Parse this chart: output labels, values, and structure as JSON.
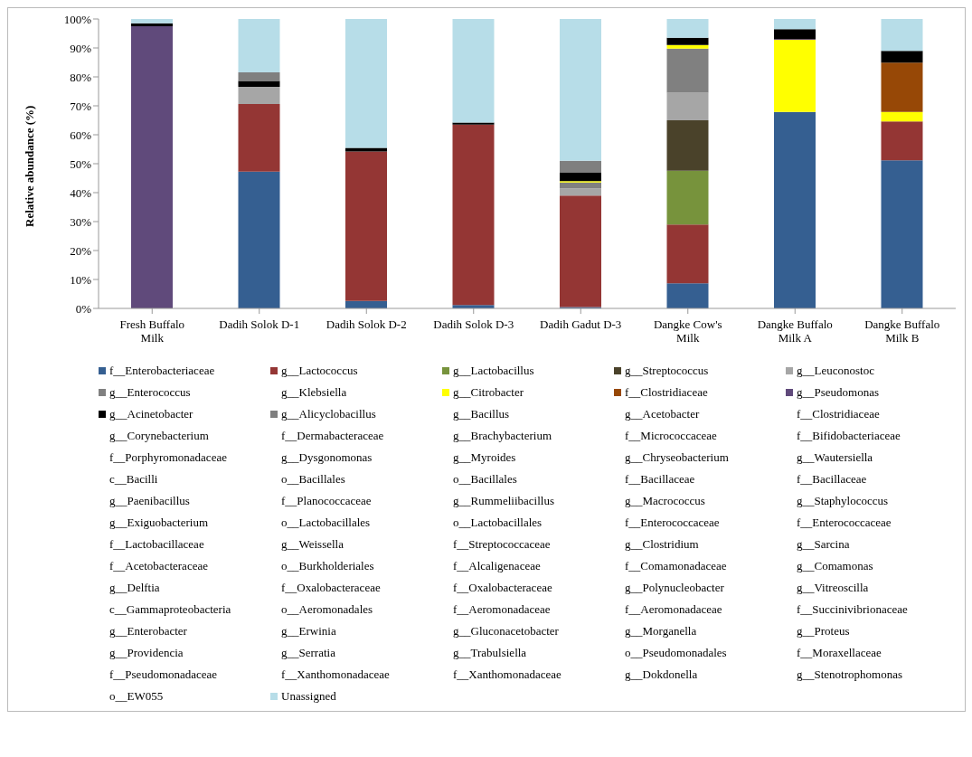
{
  "chart_data": {
    "type": "bar",
    "stacked": true,
    "ylabel": "Relative abundance (%)",
    "categories": [
      "Fresh Buffalo Milk",
      "Dadih Solok D-1",
      "Dadih Solok D-2",
      "Dadih Solok D-3",
      "Dadih Gadut D-3",
      "Dangke Cow's Milk",
      "Dangke Buffalo Milk A",
      "Dangke Buffalo Milk B"
    ],
    "ylim": [
      0,
      100
    ],
    "yticks": [
      {
        "value": 0,
        "label": "0%"
      },
      {
        "value": 10,
        "label": "10%"
      },
      {
        "value": 20,
        "label": "20%"
      },
      {
        "value": 30,
        "label": "30%"
      },
      {
        "value": 40,
        "label": "40%"
      },
      {
        "value": 50,
        "label": "50%"
      },
      {
        "value": 60,
        "label": "60%"
      },
      {
        "value": 70,
        "label": "70%"
      },
      {
        "value": 80,
        "label": "80%"
      },
      {
        "value": 90,
        "label": "90%"
      },
      {
        "value": 100,
        "label": "100%"
      }
    ],
    "grid": false,
    "legend": "bottom",
    "series": [
      {
        "name": "f__Enterobacteriaceae",
        "color": "#355f91",
        "values": [
          null,
          47.3,
          2.6,
          1.2,
          0.5,
          8.7,
          67.9,
          51.2
        ]
      },
      {
        "name": "g__Lactococcus",
        "color": "#943634",
        "values": [
          null,
          23.3,
          51.6,
          62.3,
          38.5,
          20.3,
          null,
          13.4
        ]
      },
      {
        "name": "g__Lactobacillus",
        "color": "#77933c",
        "values": [
          null,
          null,
          null,
          null,
          null,
          18.6,
          null,
          null
        ]
      },
      {
        "name": "g__Streptococcus",
        "color": "#4a422a",
        "values": [
          null,
          null,
          null,
          null,
          null,
          17.4,
          null,
          null
        ]
      },
      {
        "name": "g__Leuconostoc",
        "color": "#a6a6a6",
        "values": [
          null,
          6,
          null,
          null,
          2.5,
          9.5,
          null,
          null
        ]
      },
      {
        "name": "g__Enterococcus",
        "color": "#808080",
        "values": [
          null,
          null,
          null,
          null,
          2,
          15.3,
          null,
          null
        ]
      },
      {
        "name": "g__Klebsiella",
        "values": [
          null,
          null,
          null,
          null,
          null,
          null,
          null,
          null
        ]
      },
      {
        "name": "g__Citrobacter",
        "color": "#ffff00",
        "values": [
          null,
          null,
          null,
          null,
          0.5,
          1.2,
          24.9,
          3.3
        ]
      },
      {
        "name": "f__Clostridiaceae",
        "color": "#974806",
        "values": [
          null,
          null,
          null,
          null,
          null,
          null,
          null,
          17
        ]
      },
      {
        "name": "g__Pseudomonas",
        "color": "#604a7b",
        "values": [
          97.5,
          null,
          null,
          null,
          null,
          null,
          0.3,
          null
        ]
      },
      {
        "name": "g__Acinetobacter",
        "color": "#000000",
        "values": [
          1,
          2,
          1.3,
          0.7,
          3,
          2.5,
          3.4,
          4.1
        ]
      },
      {
        "name": "g__Alicyclobacillus",
        "color": "#7f7f7f",
        "values": [
          null,
          3,
          null,
          null,
          4,
          null,
          null,
          null
        ]
      },
      {
        "name": "g__Bacillus",
        "values": [
          null,
          null,
          null,
          null,
          null,
          null,
          null,
          null
        ]
      },
      {
        "name": "g__Acetobacter",
        "values": [
          null,
          null,
          null,
          null,
          null,
          null,
          null,
          null
        ]
      },
      {
        "name": "f__Clostridiaceae",
        "values": [
          null,
          null,
          null,
          null,
          null,
          null,
          null,
          null
        ]
      },
      {
        "name": "g__Corynebacterium",
        "values": [
          null,
          null,
          null,
          null,
          null,
          null,
          null,
          null
        ]
      },
      {
        "name": "f__Dermabacteraceae",
        "values": [
          null,
          null,
          null,
          null,
          null,
          null,
          null,
          null
        ]
      },
      {
        "name": "g__Brachybacterium",
        "values": [
          null,
          null,
          null,
          null,
          null,
          null,
          null,
          null
        ]
      },
      {
        "name": "f__Micrococcaceae",
        "values": [
          null,
          null,
          null,
          null,
          null,
          null,
          null,
          null
        ]
      },
      {
        "name": "f__Bifidobacteriaceae",
        "values": [
          null,
          null,
          null,
          null,
          null,
          null,
          null,
          null
        ]
      },
      {
        "name": "f__Porphyromonadaceae",
        "values": [
          null,
          null,
          null,
          null,
          null,
          null,
          null,
          null
        ]
      },
      {
        "name": "g__Dysgonomonas",
        "values": [
          null,
          null,
          null,
          null,
          null,
          null,
          null,
          null
        ]
      },
      {
        "name": "g__Myroides",
        "values": [
          null,
          null,
          null,
          null,
          null,
          null,
          null,
          null
        ]
      },
      {
        "name": "g__Chryseobacterium",
        "values": [
          null,
          null,
          null,
          null,
          null,
          null,
          null,
          null
        ]
      },
      {
        "name": "g__Wautersiella",
        "values": [
          null,
          null,
          null,
          null,
          null,
          null,
          null,
          null
        ]
      },
      {
        "name": "c__Bacilli",
        "values": [
          null,
          null,
          null,
          null,
          null,
          null,
          null,
          null
        ]
      },
      {
        "name": "o__Bacillales",
        "values": [
          null,
          null,
          null,
          null,
          null,
          null,
          null,
          null
        ]
      },
      {
        "name": "o__Bacillales",
        "values": [
          null,
          null,
          null,
          null,
          null,
          null,
          null,
          null
        ]
      },
      {
        "name": "f__Bacillaceae",
        "values": [
          null,
          null,
          null,
          null,
          null,
          null,
          null,
          null
        ]
      },
      {
        "name": "f__Bacillaceae",
        "values": [
          null,
          null,
          null,
          null,
          null,
          null,
          null,
          null
        ]
      },
      {
        "name": "g__Paenibacillus",
        "values": [
          null,
          null,
          null,
          null,
          null,
          null,
          null,
          null
        ]
      },
      {
        "name": "f__Planococcaceae",
        "values": [
          null,
          null,
          null,
          null,
          null,
          null,
          null,
          null
        ]
      },
      {
        "name": "g__Rummeliibacillus",
        "values": [
          null,
          null,
          null,
          null,
          null,
          null,
          null,
          null
        ]
      },
      {
        "name": "g__Macrococcus",
        "values": [
          null,
          null,
          null,
          null,
          null,
          null,
          null,
          null
        ]
      },
      {
        "name": "g__Staphylococcus",
        "values": [
          null,
          null,
          null,
          null,
          null,
          null,
          null,
          null
        ]
      },
      {
        "name": "g__Exiguobacterium",
        "values": [
          null,
          null,
          null,
          null,
          null,
          null,
          null,
          null
        ]
      },
      {
        "name": "o__Lactobacillales",
        "values": [
          null,
          null,
          null,
          null,
          null,
          null,
          null,
          null
        ]
      },
      {
        "name": "o__Lactobacillales",
        "values": [
          null,
          null,
          null,
          null,
          null,
          null,
          null,
          null
        ]
      },
      {
        "name": "f__Enterococcaceae",
        "values": [
          null,
          null,
          null,
          null,
          null,
          null,
          null,
          null
        ]
      },
      {
        "name": "f__Enterococcaceae",
        "values": [
          null,
          null,
          null,
          null,
          null,
          null,
          null,
          null
        ]
      },
      {
        "name": "f__Lactobacillaceae",
        "values": [
          null,
          null,
          null,
          null,
          null,
          null,
          null,
          null
        ]
      },
      {
        "name": "g__Weissella",
        "values": [
          null,
          null,
          null,
          null,
          null,
          null,
          null,
          null
        ]
      },
      {
        "name": "f__Streptococcaceae",
        "values": [
          null,
          null,
          null,
          null,
          null,
          null,
          null,
          null
        ]
      },
      {
        "name": "g__Clostridium",
        "values": [
          null,
          null,
          null,
          null,
          null,
          null,
          null,
          null
        ]
      },
      {
        "name": "g__Sarcina",
        "values": [
          null,
          null,
          null,
          null,
          null,
          null,
          null,
          null
        ]
      },
      {
        "name": "f__Acetobacteraceae",
        "values": [
          null,
          null,
          null,
          null,
          null,
          null,
          null,
          null
        ]
      },
      {
        "name": "o__Burkholderiales",
        "values": [
          null,
          null,
          null,
          null,
          null,
          null,
          null,
          null
        ]
      },
      {
        "name": "f__Alcaligenaceae",
        "values": [
          null,
          null,
          null,
          null,
          null,
          null,
          null,
          null
        ]
      },
      {
        "name": "f__Comamonadaceae",
        "values": [
          null,
          null,
          null,
          null,
          null,
          null,
          null,
          null
        ]
      },
      {
        "name": "g__Comamonas",
        "values": [
          null,
          null,
          null,
          null,
          null,
          null,
          null,
          null
        ]
      },
      {
        "name": "g__Delftia",
        "values": [
          null,
          null,
          null,
          null,
          null,
          null,
          null,
          null
        ]
      },
      {
        "name": "f__Oxalobacteraceae",
        "values": [
          null,
          null,
          null,
          null,
          null,
          null,
          null,
          null
        ]
      },
      {
        "name": "f__Oxalobacteraceae",
        "values": [
          null,
          null,
          null,
          null,
          null,
          null,
          null,
          null
        ]
      },
      {
        "name": "g__Polynucleobacter",
        "values": [
          null,
          null,
          null,
          null,
          null,
          null,
          null,
          null
        ]
      },
      {
        "name": "g__Vitreoscilla",
        "values": [
          null,
          null,
          null,
          null,
          null,
          null,
          null,
          null
        ]
      },
      {
        "name": "c__Gammaproteobacteria",
        "values": [
          null,
          null,
          null,
          null,
          null,
          null,
          null,
          null
        ]
      },
      {
        "name": "o__Aeromonadales",
        "values": [
          null,
          null,
          null,
          null,
          null,
          null,
          null,
          null
        ]
      },
      {
        "name": "f__Aeromonadaceae",
        "values": [
          null,
          null,
          null,
          null,
          null,
          null,
          null,
          null
        ]
      },
      {
        "name": "f__Aeromonadaceae",
        "values": [
          null,
          null,
          null,
          null,
          null,
          null,
          null,
          null
        ]
      },
      {
        "name": "f__Succinivibrionaceae",
        "values": [
          null,
          null,
          null,
          null,
          null,
          null,
          null,
          null
        ]
      },
      {
        "name": "g__Enterobacter",
        "values": [
          null,
          null,
          null,
          null,
          null,
          null,
          null,
          null
        ]
      },
      {
        "name": "g__Erwinia",
        "values": [
          null,
          null,
          null,
          null,
          null,
          null,
          null,
          null
        ]
      },
      {
        "name": "g__Gluconacetobacter",
        "values": [
          null,
          null,
          null,
          null,
          null,
          null,
          null,
          null
        ]
      },
      {
        "name": "g__Morganella",
        "values": [
          null,
          null,
          null,
          null,
          null,
          null,
          null,
          null
        ]
      },
      {
        "name": "g__Proteus",
        "values": [
          null,
          null,
          null,
          null,
          null,
          null,
          null,
          null
        ]
      },
      {
        "name": "g__Providencia",
        "values": [
          null,
          null,
          null,
          null,
          null,
          null,
          null,
          null
        ]
      },
      {
        "name": "g__Serratia",
        "values": [
          null,
          null,
          null,
          null,
          null,
          null,
          null,
          null
        ]
      },
      {
        "name": "g__Trabulsiella",
        "values": [
          null,
          null,
          null,
          null,
          null,
          null,
          null,
          null
        ]
      },
      {
        "name": "o__Pseudomonadales",
        "values": [
          null,
          null,
          null,
          null,
          null,
          null,
          null,
          null
        ]
      },
      {
        "name": "f__Moraxellaceae",
        "values": [
          null,
          null,
          null,
          null,
          null,
          null,
          null,
          null
        ]
      },
      {
        "name": "f__Pseudomonadaceae",
        "values": [
          null,
          null,
          null,
          null,
          null,
          null,
          null,
          null
        ]
      },
      {
        "name": "f__Xanthomonadaceae",
        "values": [
          null,
          null,
          null,
          null,
          null,
          null,
          null,
          null
        ]
      },
      {
        "name": "f__Xanthomonadaceae",
        "values": [
          null,
          null,
          null,
          null,
          null,
          null,
          null,
          null
        ]
      },
      {
        "name": "g__Dokdonella",
        "values": [
          null,
          null,
          null,
          null,
          null,
          null,
          null,
          null
        ]
      },
      {
        "name": "g__Stenotrophomonas",
        "values": [
          null,
          null,
          null,
          null,
          null,
          null,
          null,
          null
        ]
      },
      {
        "name": "o__EW055",
        "values": [
          null,
          null,
          null,
          null,
          null,
          null,
          null,
          null
        ]
      },
      {
        "name": "Unassigned",
        "color": "#b7dde8",
        "values": [
          1.5,
          18.4,
          44.5,
          35.8,
          49,
          6.5,
          3.5,
          11
        ]
      }
    ]
  }
}
